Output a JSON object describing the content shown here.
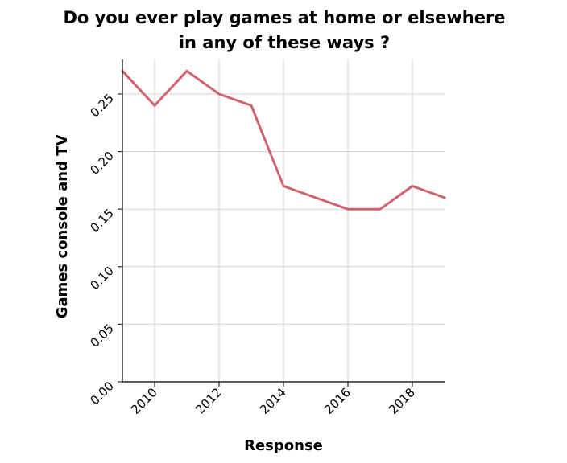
{
  "chart_data": {
    "type": "line",
    "title_lines": [
      "Do you ever play games at home or elsewhere",
      "in any of these ways ?"
    ],
    "xlabel": "Response",
    "ylabel": "Games console and TV",
    "x": [
      2009,
      2010,
      2011,
      2012,
      2013,
      2014,
      2015,
      2016,
      2017,
      2018,
      2019
    ],
    "series": [
      {
        "values": [
          0.27,
          0.24,
          0.27,
          0.25,
          0.24,
          0.17,
          0.16,
          0.15,
          0.15,
          0.17,
          0.16
        ],
        "color": "#d1626d"
      }
    ],
    "xlim": [
      2009,
      2019
    ],
    "ylim": [
      0,
      0.28
    ],
    "xticks": [
      "2010",
      "2012",
      "2014",
      "2016",
      "2018"
    ],
    "yticks": [
      "0.00",
      "0.05",
      "0.10",
      "0.15",
      "0.20",
      "0.25"
    ],
    "grid": true
  }
}
